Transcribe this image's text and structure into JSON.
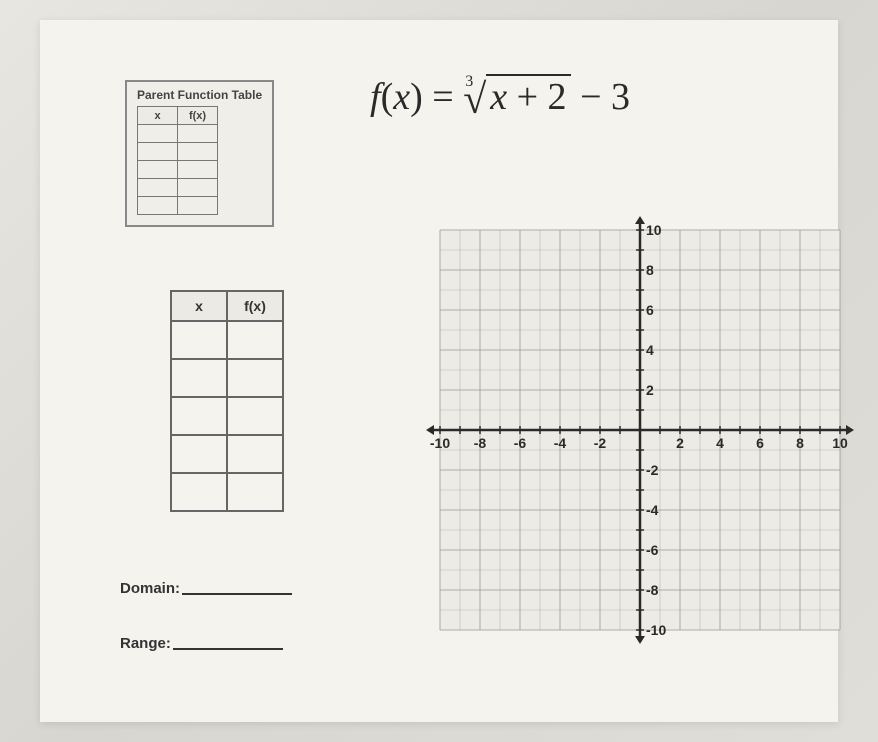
{
  "parentTable": {
    "title": "Parent Function Table",
    "headers": [
      "x",
      "f(x)"
    ],
    "rowCount": 5
  },
  "equation": {
    "fn": "f",
    "var": "x",
    "index": "3",
    "radicand_var": "x",
    "radicand_const": "+ 2",
    "outer_const": "− 3"
  },
  "funcTable": {
    "headers": [
      "x",
      "f(x)"
    ],
    "rowCount": 5
  },
  "labels": {
    "domain": "Domain:",
    "range": "Range:"
  },
  "graph": {
    "xMin": -10,
    "xMax": 10,
    "yMin": -10,
    "yMax": 10,
    "majorStep": 2,
    "minorStep": 1,
    "xTicks": [
      -10,
      -8,
      -6,
      -4,
      -2,
      2,
      4,
      6,
      8,
      10
    ],
    "yTicks": [
      10,
      8,
      6,
      4,
      2,
      -2,
      -4,
      -6,
      -8,
      -10
    ],
    "gridColor": "#b8b6b0",
    "majorGridColor": "#a0a0a0",
    "axisColor": "#2a2a2a",
    "bgColor": "#ecebe5",
    "labelFontSize": 14
  }
}
